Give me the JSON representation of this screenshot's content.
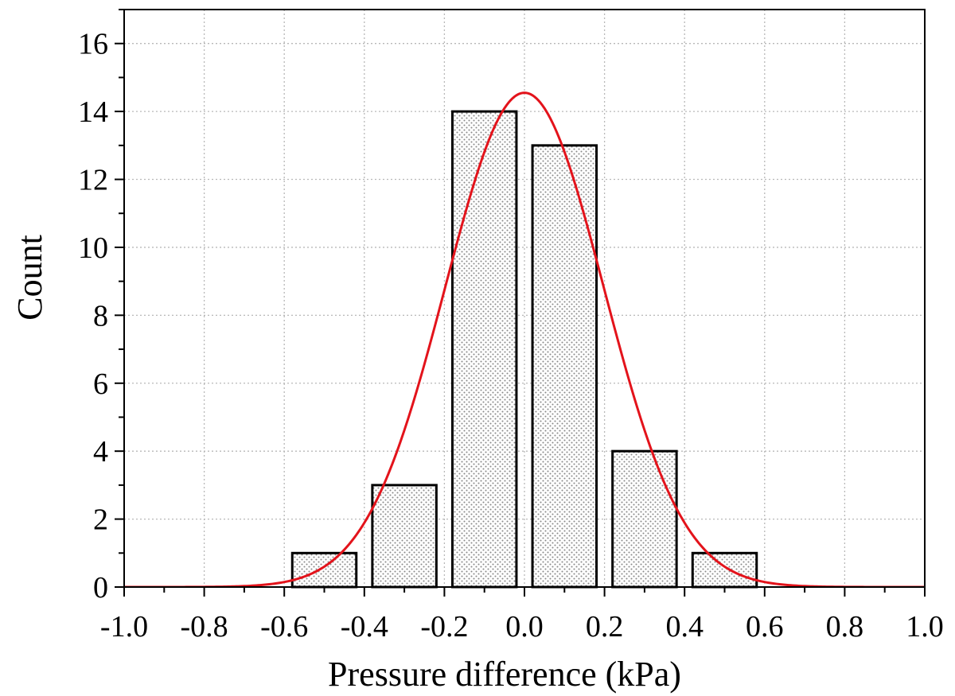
{
  "chart_data": {
    "type": "bar",
    "title": "",
    "xlabel": "Pressure difference (kPa)",
    "ylabel": "Count",
    "xlim": [
      -1.0,
      1.0
    ],
    "ylim": [
      0,
      17
    ],
    "x_ticks": [
      "-1.0",
      "-0.8",
      "-0.6",
      "-0.4",
      "-0.2",
      "0.0",
      "0.2",
      "0.4",
      "0.6",
      "0.8",
      "1.0"
    ],
    "y_ticks": [
      "0",
      "2",
      "4",
      "6",
      "8",
      "10",
      "12",
      "14",
      "16"
    ],
    "grid": true,
    "bins": [
      {
        "center": -0.5,
        "width": 0.16,
        "count": 1
      },
      {
        "center": -0.3,
        "width": 0.16,
        "count": 3
      },
      {
        "center": -0.1,
        "width": 0.16,
        "count": 14
      },
      {
        "center": 0.1,
        "width": 0.16,
        "count": 13
      },
      {
        "center": 0.3,
        "width": 0.16,
        "count": 4
      },
      {
        "center": 0.5,
        "width": 0.16,
        "count": 1
      }
    ],
    "fit_curve": {
      "type": "normal",
      "mean": 0.0,
      "sigma": 0.198,
      "peak": 14.55
    },
    "colors": {
      "bar_edge": "#000000",
      "bar_fill_pattern": "#8a8a8a",
      "fit_line": "#e3131b",
      "grid": "#b8b8b8"
    }
  }
}
